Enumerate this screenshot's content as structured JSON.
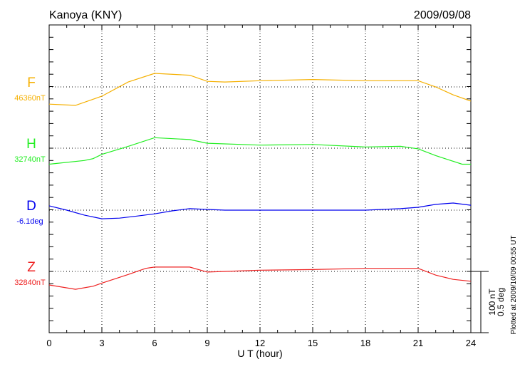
{
  "chart_data": {
    "type": "line",
    "title": "Kanoya (KNY)",
    "date": "2009/09/08",
    "xlabel": "U T (hour)",
    "xlim": [
      0,
      24
    ],
    "xticks": [
      "0",
      "3",
      "6",
      "9",
      "12",
      "15",
      "18",
      "21",
      "24"
    ],
    "grid": true,
    "scale_bar": {
      "nT_label": "100 nT",
      "deg_label": "0.5 deg",
      "nT": 100,
      "deg": 0.5
    },
    "footer": "Plotted at 2009/10/09 00:55 UT",
    "series": [
      {
        "name": "F",
        "baseline_label": "46360nT",
        "baseline": 46360,
        "unit": "nT",
        "color": "#f5b000",
        "x": [
          0,
          1.5,
          3,
          4.5,
          6,
          8,
          9,
          10,
          12,
          15,
          18,
          21,
          22,
          23,
          24
        ],
        "y": [
          46332,
          46330,
          46345,
          46368,
          46382,
          46379,
          46369,
          46368,
          46370,
          46372,
          46370,
          46370,
          46360,
          46347,
          46337
        ]
      },
      {
        "name": "H",
        "baseline_label": "32740nT",
        "baseline": 32740,
        "unit": "nT",
        "color": "#22ee22",
        "x": [
          0,
          2,
          2.5,
          3,
          4.5,
          6,
          8,
          9,
          12,
          15,
          18,
          20,
          21,
          22,
          23.5,
          24
        ],
        "y": [
          32714,
          32720,
          32723,
          32730,
          32743,
          32757,
          32754,
          32748,
          32745,
          32746,
          32742,
          32743,
          32739,
          32728,
          32714,
          32714
        ]
      },
      {
        "name": "D",
        "baseline_label": "-6.1deg",
        "baseline": -6.1,
        "unit": "deg",
        "color": "#0000ee",
        "x": [
          0,
          1,
          2,
          3,
          4,
          5,
          6,
          7,
          8,
          9,
          10,
          12,
          15,
          18,
          20,
          21,
          22,
          23,
          24
        ],
        "y": [
          -6.065,
          -6.1,
          -6.14,
          -6.17,
          -6.165,
          -6.148,
          -6.13,
          -6.106,
          -6.088,
          -6.094,
          -6.1,
          -6.1,
          -6.1,
          -6.1,
          -6.088,
          -6.077,
          -6.053,
          -6.042,
          -6.06
        ]
      },
      {
        "name": "Z",
        "baseline_label": "32840nT",
        "baseline": 32840,
        "unit": "nT",
        "color": "#ee2222",
        "x": [
          0,
          1.5,
          2.5,
          3,
          4.5,
          5.5,
          6,
          8,
          9,
          10,
          12,
          15,
          18,
          21,
          22,
          23,
          24
        ],
        "y": [
          32818,
          32811,
          32816,
          32821,
          32835,
          32845,
          32847,
          32847,
          32839,
          32840,
          32842,
          32843,
          32845,
          32845,
          32834,
          32827,
          32824
        ]
      }
    ]
  }
}
